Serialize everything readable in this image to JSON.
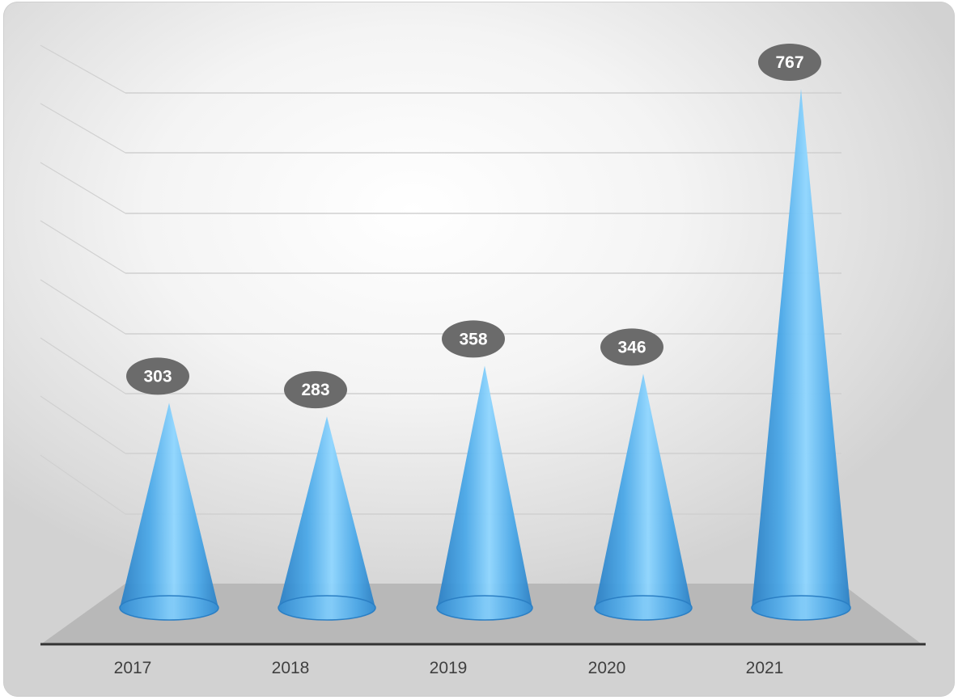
{
  "chart_data": {
    "type": "bar",
    "shape": "cone",
    "categories": [
      "2017",
      "2018",
      "2019",
      "2020",
      "2021"
    ],
    "values": [
      303,
      283,
      358,
      346,
      767
    ],
    "title": "",
    "xlabel": "",
    "ylabel": "",
    "ylim": [
      0,
      800
    ],
    "grid": true,
    "legend": "none",
    "colors": {
      "cone": "#4aa8e8",
      "cone_highlight": "#8fd6ff",
      "cone_dark": "#2b7fc4",
      "label_bubble": "#6b6b6b",
      "floor": "#b8b8b8",
      "gridline": "#d0d0d0",
      "axis": "#333333"
    }
  }
}
